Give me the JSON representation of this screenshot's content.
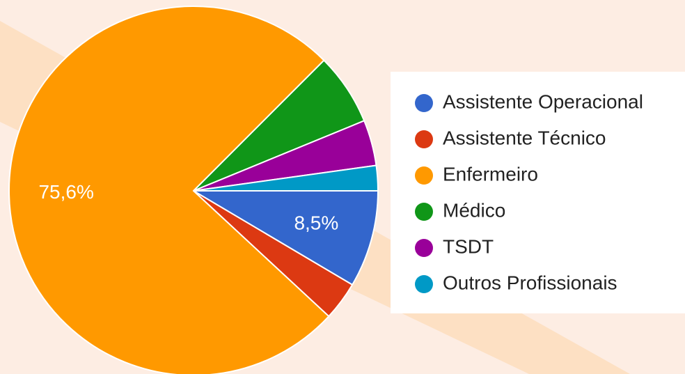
{
  "chart_data": {
    "type": "pie",
    "categories": [
      "Assistente Operacional",
      "Assistente Técnico",
      "Enfermeiro",
      "Médico",
      "TSDT",
      "Outros Profissionais"
    ],
    "values": [
      8.5,
      3.4,
      75.6,
      6.3,
      4.0,
      2.2
    ],
    "value_labels": [
      "8,5%",
      null,
      "75,6%",
      null,
      null,
      null
    ],
    "colors": [
      "#3366cc",
      "#dc3912",
      "#ff9900",
      "#109618",
      "#990099",
      "#0099c6"
    ],
    "legend": "right"
  }
}
